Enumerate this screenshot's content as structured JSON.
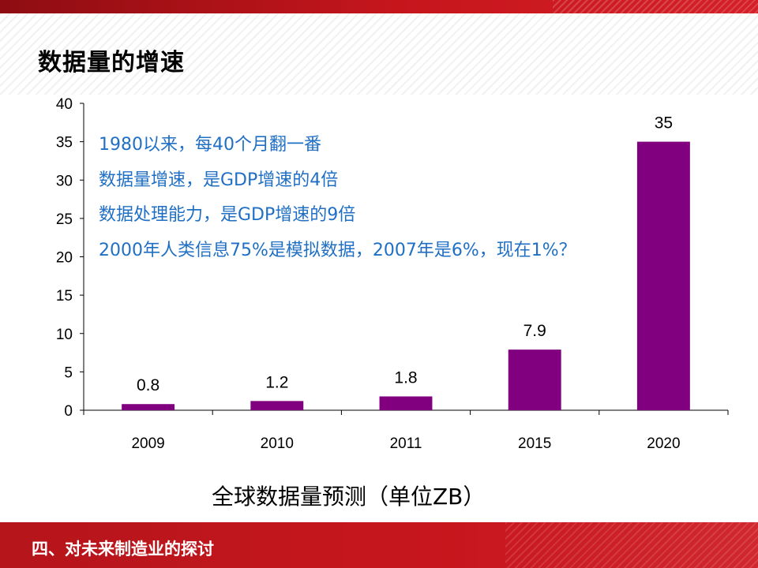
{
  "slide": {
    "title": "数据量的增速",
    "caption": "全球数据量预测（单位ZB）",
    "footer": "四、对未来制造业的探讨",
    "notes": [
      "1980以来，每40个月翻一番",
      "数据量增速，是GDP增速的4倍",
      "数据处理能力，是GDP增速的9倍",
      "2000年人类信息75%是模拟数据，2007年是6%，现在1%？"
    ]
  },
  "colors": {
    "bar": "#800080",
    "note_text": "#1f6fc5",
    "header_red": "#c8161d"
  },
  "chart_data": {
    "type": "bar",
    "categories": [
      "2009",
      "2010",
      "2011",
      "2015",
      "2020"
    ],
    "values": [
      0.8,
      1.2,
      1.8,
      7.9,
      35
    ],
    "value_labels": [
      "0.8",
      "1.2",
      "1.8",
      "7.9",
      "35"
    ],
    "ylim": [
      0,
      40
    ],
    "yticks": [
      0,
      5,
      10,
      15,
      20,
      25,
      30,
      35,
      40
    ],
    "grid": false,
    "legend": "none"
  }
}
